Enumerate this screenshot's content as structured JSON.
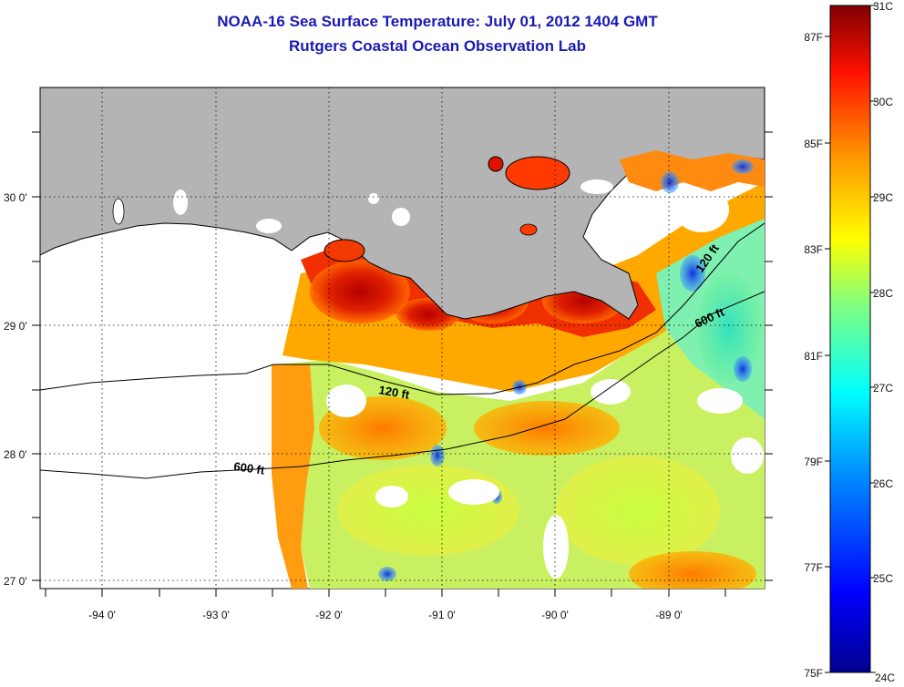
{
  "title": {
    "line1": "NOAA-16 Sea Surface Temperature:  July 01, 2012 1404 GMT",
    "line2": "Rutgers Coastal Ocean Observation Lab"
  },
  "map": {
    "lat_labels": [
      "30 0'",
      "29 0'",
      "28 0'",
      "27 0'"
    ],
    "lon_labels": [
      "-94 0'",
      "-93 0'",
      "-92 0'",
      "-91 0'",
      "-90 0'",
      "-89 0'"
    ],
    "contours": [
      "120 ft",
      "600 ft",
      "120 ft",
      "600 ft"
    ],
    "colors": {
      "land": "#b4b4b4",
      "cloud": "#ffffff"
    }
  },
  "colorbar": {
    "celsius": [
      "31C",
      "30C",
      "29C",
      "28C",
      "27C",
      "26C",
      "25C",
      "24C"
    ],
    "fahrenheit": [
      "87F",
      "85F",
      "83F",
      "81F",
      "79F",
      "77F",
      "75F"
    ],
    "colors": [
      "#00008f",
      "#0000ff",
      "#0080ff",
      "#00ffff",
      "#80ff80",
      "#ffff00",
      "#ff8000",
      "#ff0000",
      "#800000"
    ]
  }
}
